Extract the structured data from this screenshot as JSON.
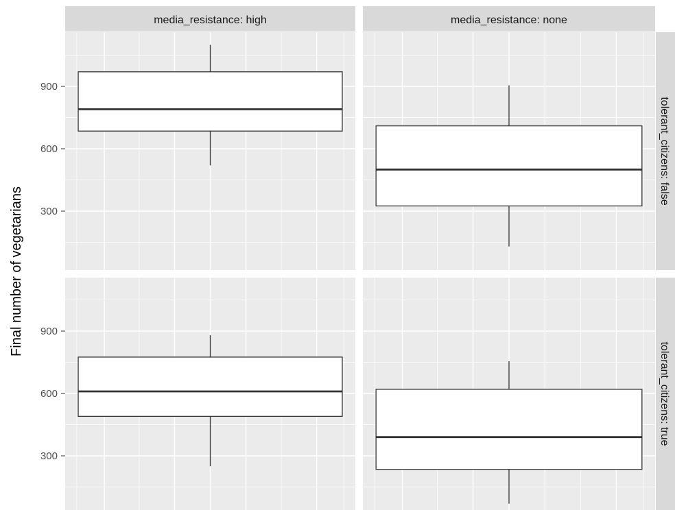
{
  "chart_data": {
    "type": "box",
    "ylabel": "Final number of vegetarians",
    "yticks": [
      300,
      600,
      900
    ],
    "ylim": [
      0,
      1145
    ],
    "col_facet_labels": [
      "media_resistance: high",
      "media_resistance: none"
    ],
    "row_facet_labels": [
      "tolerant_citizens: false",
      "tolerant_citizens: true"
    ],
    "grid": true,
    "panels": [
      {
        "col": 0,
        "row": 0,
        "whisker_low": 520,
        "q1": 685,
        "median": 790,
        "q3": 970,
        "whisker_high": 1100
      },
      {
        "col": 1,
        "row": 0,
        "whisker_low": 130,
        "q1": 325,
        "median": 500,
        "q3": 710,
        "whisker_high": 905
      },
      {
        "col": 0,
        "row": 1,
        "whisker_low": 250,
        "q1": 490,
        "median": 610,
        "q3": 775,
        "whisker_high": 880
      },
      {
        "col": 1,
        "row": 1,
        "whisker_low": 70,
        "q1": 235,
        "median": 390,
        "q3": 620,
        "whisker_high": 755
      }
    ]
  },
  "colors": {
    "panel_bg": "#ebebeb",
    "grid": "#ffffff",
    "strip_bg": "#d9d9d9",
    "box_fill": "#ffffff",
    "box_line": "#333333"
  }
}
